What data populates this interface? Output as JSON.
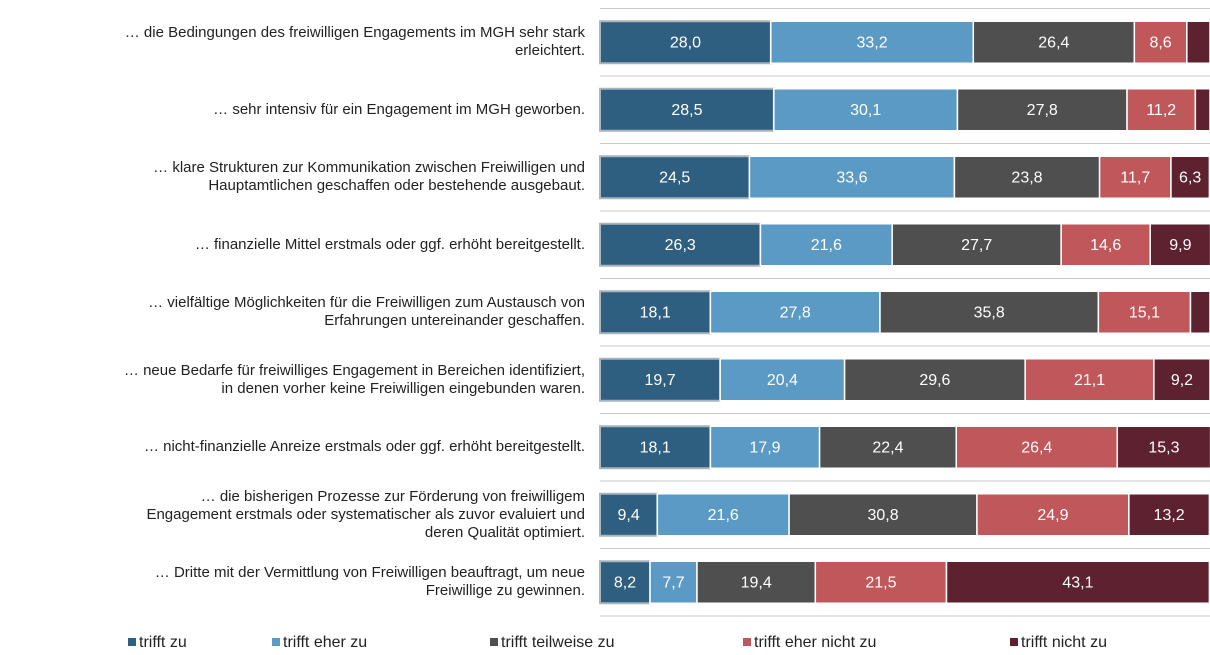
{
  "chart_data": {
    "type": "stacked-bar-horizontal",
    "categories": [
      "… die Bedingungen des freiwilligen Engagements im MGH sehr stark\nerleichtert.",
      "… sehr intensiv für ein Engagement im MGH geworben.",
      "… klare Strukturen zur Kommunikation zwischen Freiwilligen und\nHauptamtlichen geschaffen oder bestehende ausgebaut.",
      "… finanzielle Mittel erstmals oder ggf. erhöht bereitgestellt.",
      "… vielfältige Möglichkeiten für die Freiwilligen zum Austausch von\nErfahrungen untereinander geschaffen.",
      "… neue Bedarfe für freiwilliges Engagement in Bereichen identifiziert,\nin denen vorher keine Freiwilligen eingebunden waren.",
      "… nicht-finanzielle Anreize erstmals oder ggf. erhöht bereitgestellt.",
      "… die bisherigen Prozesse zur Förderung von freiwilligem\nEngagement erstmals oder systematischer als zuvor evaluiert und\nderen Qualität optimiert.",
      "… Dritte mit der Vermittlung von Freiwilligen beauftragt, um neue\nFreiwillige zu gewinnen."
    ],
    "series": [
      {
        "name": "trifft zu",
        "color": "#2f5f80",
        "values": [
          28.0,
          28.5,
          24.5,
          26.3,
          18.1,
          19.7,
          18.1,
          9.4,
          8.2
        ],
        "value_labels": [
          "28,0",
          "28,5",
          "24,5",
          "26,3",
          "18,1",
          "19,7",
          "18,1",
          "9,4",
          "8,2"
        ]
      },
      {
        "name": "trifft eher zu",
        "color": "#5b9ac4",
        "values": [
          33.2,
          30.1,
          33.6,
          21.6,
          27.8,
          20.4,
          17.9,
          21.6,
          7.7
        ],
        "value_labels": [
          "33,2",
          "30,1",
          "33,6",
          "21,6",
          "27,8",
          "20,4",
          "17,9",
          "21,6",
          "7,7"
        ]
      },
      {
        "name": "trifft teilweise zu",
        "color": "#4f4f4f",
        "values": [
          26.4,
          27.8,
          23.8,
          27.7,
          35.8,
          29.6,
          22.4,
          30.8,
          19.4
        ],
        "value_labels": [
          "26,4",
          "27,8",
          "23,8",
          "27,7",
          "35,8",
          "29,6",
          "22,4",
          "30,8",
          "19,4"
        ]
      },
      {
        "name": "trifft eher nicht zu",
        "color": "#c0575a",
        "values": [
          8.6,
          11.2,
          11.7,
          14.6,
          15.1,
          21.1,
          26.4,
          24.9,
          21.5
        ],
        "value_labels": [
          "8,6",
          "11,2",
          "11,7",
          "14,6",
          "15,1",
          "21,1",
          "26,4",
          "24,9",
          "21,5"
        ]
      },
      {
        "name": "trifft nicht zu",
        "color": "#5e2130",
        "values": [
          3.8,
          2.4,
          6.3,
          9.9,
          3.2,
          9.2,
          15.3,
          13.2,
          43.1
        ],
        "value_labels": [
          null,
          null,
          "6,3",
          "9,9",
          null,
          "9,2",
          "15,3",
          "13,2",
          "43,1"
        ]
      }
    ],
    "xlim": [
      0,
      100
    ]
  }
}
